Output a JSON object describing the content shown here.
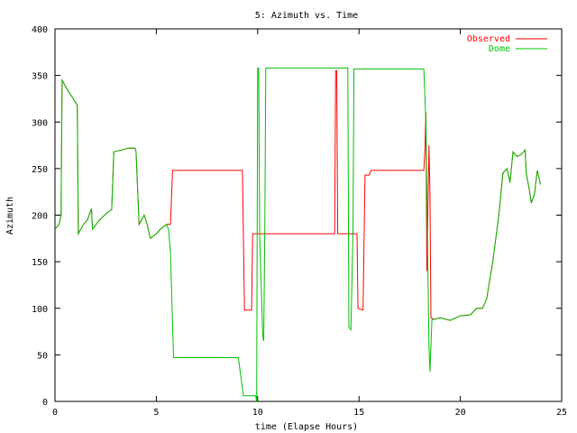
{
  "chart_data": {
    "type": "line",
    "title": "5: Azimuth vs. Time",
    "xlabel": "time (Elapse Hours)",
    "ylabel": "Azimuth",
    "xlim": [
      0,
      25
    ],
    "ylim": [
      0,
      400
    ],
    "xticks": [
      0,
      5,
      10,
      15,
      20,
      25
    ],
    "yticks": [
      0,
      50,
      100,
      150,
      200,
      250,
      300,
      350,
      400
    ],
    "grid": false,
    "legend": "top-right",
    "series": [
      {
        "name": "Observed",
        "color": "#ff0000",
        "points": [
          [
            0,
            185
          ],
          [
            0.2,
            190
          ],
          [
            0.3,
            200
          ],
          [
            0.35,
            345
          ],
          [
            0.6,
            335
          ],
          [
            0.9,
            325
          ],
          [
            1.1,
            318
          ],
          [
            1.15,
            180
          ],
          [
            1.4,
            190
          ],
          [
            1.6,
            195
          ],
          [
            1.8,
            207
          ],
          [
            1.85,
            185
          ],
          [
            2.2,
            195
          ],
          [
            2.6,
            203
          ],
          [
            2.8,
            206
          ],
          [
            2.9,
            268
          ],
          [
            3.3,
            270
          ],
          [
            3.6,
            272
          ],
          [
            3.95,
            272
          ],
          [
            4.0,
            268
          ],
          [
            4.1,
            215
          ],
          [
            4.15,
            190
          ],
          [
            4.4,
            200
          ],
          [
            4.55,
            190
          ],
          [
            4.7,
            175
          ],
          [
            5.0,
            180
          ],
          [
            5.2,
            185
          ],
          [
            5.5,
            190
          ],
          [
            5.7,
            190
          ],
          [
            5.8,
            248
          ],
          [
            6.5,
            248
          ],
          [
            8.0,
            248
          ],
          [
            9.25,
            248
          ],
          [
            9.35,
            98
          ],
          [
            9.7,
            98
          ],
          [
            9.75,
            180
          ],
          [
            11.0,
            180
          ],
          [
            12.5,
            180
          ],
          [
            13.8,
            180
          ],
          [
            13.85,
            355
          ],
          [
            13.9,
            355
          ],
          [
            13.95,
            180
          ],
          [
            14.5,
            180
          ],
          [
            14.6,
            180
          ],
          [
            14.9,
            180
          ],
          [
            14.95,
            100
          ],
          [
            15.2,
            98
          ],
          [
            15.3,
            243
          ],
          [
            15.5,
            243
          ],
          [
            15.6,
            248
          ],
          [
            16.5,
            248
          ],
          [
            18.2,
            248
          ],
          [
            18.25,
            270
          ],
          [
            18.3,
            310
          ],
          [
            18.35,
            140
          ],
          [
            18.45,
            275
          ],
          [
            18.5,
            225
          ],
          [
            18.55,
            90
          ],
          [
            18.7,
            88
          ],
          [
            19.0,
            90
          ],
          [
            19.5,
            87
          ],
          [
            20.0,
            92
          ],
          [
            20.5,
            93
          ],
          [
            20.8,
            100
          ],
          [
            21.1,
            100
          ],
          [
            21.3,
            110
          ],
          [
            21.6,
            150
          ],
          [
            21.9,
            200
          ],
          [
            22.1,
            245
          ],
          [
            22.3,
            250
          ],
          [
            22.45,
            235
          ],
          [
            22.6,
            268
          ],
          [
            22.8,
            263
          ],
          [
            23.0,
            265
          ],
          [
            23.2,
            270
          ],
          [
            23.25,
            245
          ],
          [
            23.4,
            228
          ],
          [
            23.5,
            213
          ],
          [
            23.65,
            222
          ],
          [
            23.8,
            248
          ],
          [
            23.9,
            238
          ],
          [
            23.95,
            233
          ]
        ]
      },
      {
        "name": "Dome",
        "color": "#00c000",
        "points": [
          [
            0,
            185
          ],
          [
            0.2,
            190
          ],
          [
            0.3,
            200
          ],
          [
            0.35,
            345
          ],
          [
            0.6,
            335
          ],
          [
            0.9,
            325
          ],
          [
            1.1,
            318
          ],
          [
            1.15,
            180
          ],
          [
            1.4,
            190
          ],
          [
            1.6,
            195
          ],
          [
            1.8,
            207
          ],
          [
            1.85,
            185
          ],
          [
            2.2,
            195
          ],
          [
            2.6,
            203
          ],
          [
            2.8,
            206
          ],
          [
            2.9,
            268
          ],
          [
            3.3,
            270
          ],
          [
            3.6,
            272
          ],
          [
            3.95,
            272
          ],
          [
            4.0,
            268
          ],
          [
            4.1,
            215
          ],
          [
            4.15,
            190
          ],
          [
            4.4,
            200
          ],
          [
            4.55,
            190
          ],
          [
            4.7,
            175
          ],
          [
            5.0,
            180
          ],
          [
            5.2,
            185
          ],
          [
            5.5,
            190
          ],
          [
            5.6,
            185
          ],
          [
            5.7,
            160
          ],
          [
            5.85,
            47
          ],
          [
            7.0,
            47
          ],
          [
            8.5,
            47
          ],
          [
            9.05,
            47
          ],
          [
            9.15,
            30
          ],
          [
            9.3,
            6
          ],
          [
            9.9,
            6
          ],
          [
            9.95,
            0
          ],
          [
            10.0,
            358
          ],
          [
            10.05,
            358
          ],
          [
            10.1,
            180
          ],
          [
            10.25,
            70
          ],
          [
            10.3,
            65
          ],
          [
            10.35,
            180
          ],
          [
            10.4,
            358
          ],
          [
            12.0,
            358
          ],
          [
            14.45,
            358
          ],
          [
            14.5,
            80
          ],
          [
            14.6,
            77
          ],
          [
            14.7,
            180
          ],
          [
            14.75,
            357
          ],
          [
            16.5,
            357
          ],
          [
            18.2,
            357
          ],
          [
            18.3,
            300
          ],
          [
            18.45,
            60
          ],
          [
            18.5,
            32
          ],
          [
            18.6,
            88
          ],
          [
            18.7,
            88
          ],
          [
            19.0,
            90
          ],
          [
            19.5,
            87
          ],
          [
            20.0,
            92
          ],
          [
            20.5,
            93
          ],
          [
            20.8,
            100
          ],
          [
            21.1,
            100
          ],
          [
            21.3,
            110
          ],
          [
            21.6,
            150
          ],
          [
            21.9,
            200
          ],
          [
            22.1,
            245
          ],
          [
            22.3,
            250
          ],
          [
            22.45,
            235
          ],
          [
            22.6,
            268
          ],
          [
            22.8,
            263
          ],
          [
            23.0,
            265
          ],
          [
            23.2,
            270
          ],
          [
            23.25,
            245
          ],
          [
            23.4,
            228
          ],
          [
            23.5,
            213
          ],
          [
            23.65,
            222
          ],
          [
            23.8,
            248
          ],
          [
            23.9,
            238
          ],
          [
            23.95,
            233
          ]
        ]
      }
    ]
  }
}
